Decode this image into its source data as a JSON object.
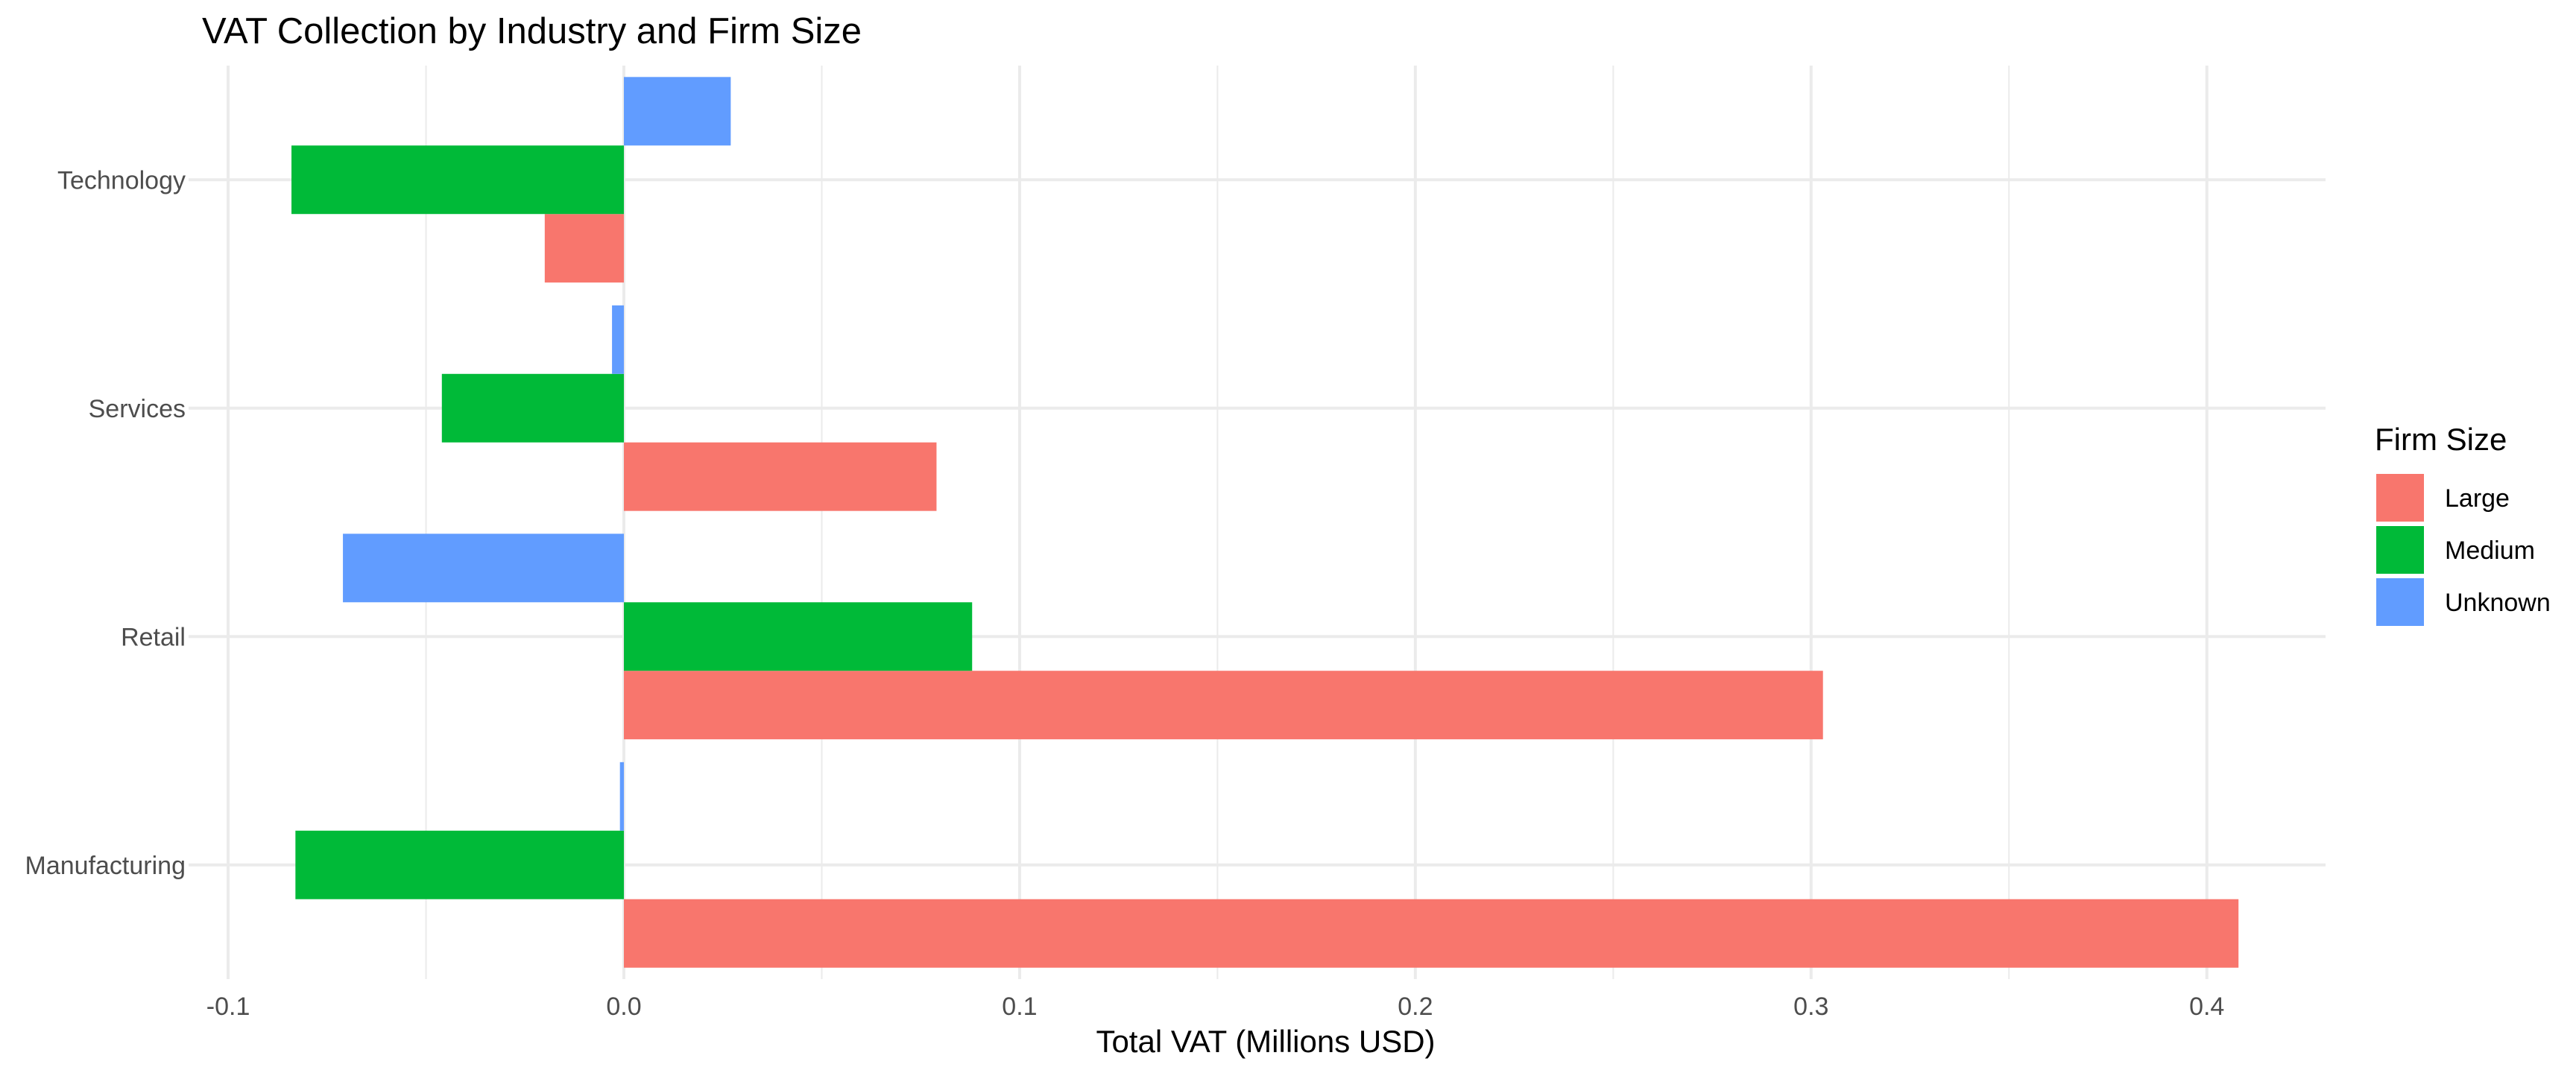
{
  "chart_data": {
    "type": "bar",
    "orientation": "horizontal",
    "title": "VAT Collection by Industry and Firm Size",
    "xlabel": "Total VAT (Millions USD)",
    "ylabel": "",
    "categories": [
      "Manufacturing",
      "Retail",
      "Services",
      "Technology"
    ],
    "xlim": [
      -0.11,
      0.43
    ],
    "x_ticks": [
      -0.1,
      0.0,
      0.1,
      0.2,
      0.3,
      0.4
    ],
    "x_tick_labels": [
      "-0.1",
      "0.0",
      "0.1",
      "0.2",
      "0.3",
      "0.4"
    ],
    "grid": true,
    "legend": {
      "title": "Firm Size",
      "position": "right"
    },
    "series": [
      {
        "name": "Large",
        "color": "#F8766D",
        "values": [
          0.408,
          0.303,
          0.079,
          -0.02
        ]
      },
      {
        "name": "Medium",
        "color": "#00BA38",
        "values": [
          -0.083,
          0.088,
          -0.046,
          -0.084
        ]
      },
      {
        "name": "Unknown",
        "color": "#619CFF",
        "values": [
          -0.001,
          -0.071,
          -0.003,
          0.027
        ]
      }
    ]
  }
}
